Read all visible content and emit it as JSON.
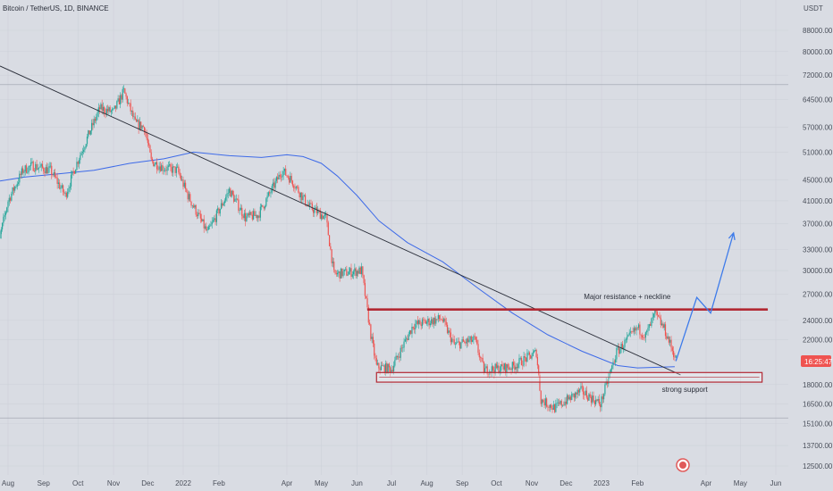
{
  "chart_data": {
    "type": "candlestick",
    "title": "Bitcoin / TetherUS, 1D, BINANCE",
    "currency": "USDT",
    "y_scale": "log",
    "ylim": [
      11800,
      100000
    ],
    "x_ticks": [
      "Aug",
      "Sep",
      "Oct",
      "Nov",
      "Dec",
      "2022",
      "Feb",
      "Apr",
      "May",
      "Jun",
      "Jul",
      "Aug",
      "Sep",
      "Oct",
      "Nov",
      "Dec",
      "2023",
      "Feb",
      "Apr",
      "May",
      "Jun"
    ],
    "y_ticks": [
      88000,
      80000,
      72000,
      64500,
      57000,
      51000,
      45000,
      41000,
      37000,
      33000,
      30000,
      27000,
      24000,
      22000,
      18000,
      16500,
      15100,
      13700,
      12500
    ],
    "price_tag": "16:25:47",
    "colors": {
      "up": "#26a69a",
      "down": "#ef5350",
      "ma": "#3d6ae8",
      "resistance": "#b22833",
      "trendline": "#2a2e39",
      "arrow": "#3d7bea",
      "price_tag": "#ef5350"
    },
    "moving_average": {
      "dates": [
        "2021-07-25",
        "2021-08-15",
        "2021-09-15",
        "2021-10-15",
        "2021-11-15",
        "2021-12-15",
        "2022-01-10",
        "2022-02-10",
        "2022-03-10",
        "2022-04-01",
        "2022-04-15",
        "2022-05-01",
        "2022-05-15",
        "2022-06-01",
        "2022-06-20",
        "2022-07-15",
        "2022-08-15",
        "2022-09-15",
        "2022-10-15",
        "2022-11-15",
        "2022-12-15",
        "2023-01-15",
        "2023-02-01",
        "2023-03-05"
      ],
      "values": [
        44800,
        45600,
        46300,
        47000,
        48500,
        49500,
        51000,
        50200,
        49800,
        50400,
        50000,
        48500,
        45800,
        42000,
        37500,
        34000,
        31200,
        27700,
        24800,
        22500,
        20900,
        19600,
        19400,
        19500
      ]
    },
    "lines": [
      {
        "name": "trendline",
        "from": [
          "2021-07-25",
          75000
        ],
        "to": [
          "2023-03-10",
          18800
        ]
      },
      {
        "name": "resistance",
        "from": [
          "2022-06-10",
          25200
        ],
        "to": [
          "2023-05-25",
          25200
        ]
      },
      {
        "name": "reference-level-upper",
        "from": [
          "2021-07-20",
          69000
        ],
        "to": [
          "2023-06-30",
          69000
        ]
      },
      {
        "name": "reference-level-lower",
        "from": [
          "2021-07-20",
          15500
        ],
        "to": [
          "2023-06-30",
          15500
        ]
      }
    ],
    "support_zone": {
      "from": "2022-06-18",
      "to": "2023-05-20",
      "low": 18200,
      "high": 19000,
      "label": "strong support"
    },
    "annotations": [
      {
        "text": "Major resistance + neckline",
        "date": "2023-01-15",
        "price": 26400
      }
    ],
    "projection_arrow": [
      [
        "2023-03-06",
        20000
      ],
      [
        "2023-03-24",
        26600
      ],
      [
        "2023-04-05",
        24800
      ],
      [
        "2023-04-25",
        35500
      ]
    ],
    "price_path": {
      "dates": [
        "2021-07-20",
        "2021-07-25",
        "2021-08-01",
        "2021-08-14",
        "2021-08-22",
        "2021-09-07",
        "2021-09-20",
        "2021-09-29",
        "2021-10-10",
        "2021-10-20",
        "2021-11-01",
        "2021-11-10",
        "2021-11-20",
        "2021-11-28",
        "2021-12-04",
        "2021-12-15",
        "2021-12-27",
        "2022-01-05",
        "2022-01-22",
        "2022-02-10",
        "2022-02-24",
        "2022-03-07",
        "2022-03-28",
        "2022-04-05",
        "2022-04-20",
        "2022-05-05",
        "2022-05-12",
        "2022-06-05",
        "2022-06-13",
        "2022-06-18",
        "2022-07-01",
        "2022-07-20",
        "2022-08-14",
        "2022-08-25",
        "2022-09-12",
        "2022-09-20",
        "2022-10-15",
        "2022-11-05",
        "2022-11-09",
        "2022-11-21",
        "2022-12-14",
        "2022-12-31",
        "2023-01-14",
        "2023-02-01",
        "2023-02-08",
        "2023-02-16",
        "2023-02-24",
        "2023-03-06"
      ],
      "values": [
        31000,
        35000,
        41000,
        47000,
        48000,
        47000,
        42000,
        48000,
        55000,
        62000,
        61000,
        67000,
        58000,
        57000,
        49000,
        47500,
        47000,
        42000,
        35500,
        43000,
        38000,
        38500,
        47000,
        45000,
        40000,
        38000,
        29500,
        30000,
        22500,
        19500,
        19300,
        23500,
        24200,
        21500,
        22000,
        19200,
        19500,
        20800,
        16800,
        16200,
        17500,
        16500,
        20800,
        23200,
        22400,
        24700,
        23100,
        20200
      ]
    }
  }
}
